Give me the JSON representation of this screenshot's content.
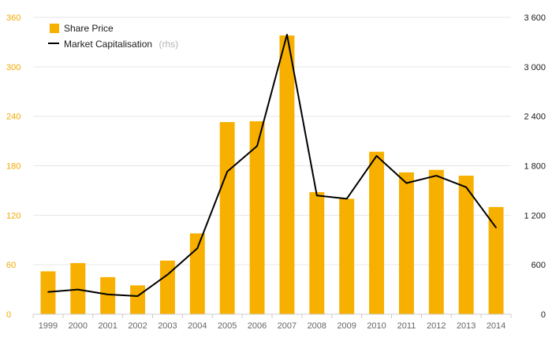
{
  "chart_data": {
    "type": "bar+line",
    "categories": [
      "1999",
      "2000",
      "2001",
      "2002",
      "2003",
      "2004",
      "2005",
      "2006",
      "2007",
      "2008",
      "2009",
      "2010",
      "2011",
      "2012",
      "2013",
      "2014"
    ],
    "series": [
      {
        "name": "Share Price",
        "type": "bar",
        "axis": "left",
        "color": "#f7b000",
        "values": [
          52,
          62,
          45,
          35,
          65,
          98,
          233,
          234,
          338,
          148,
          140,
          197,
          172,
          175,
          168,
          130
        ]
      },
      {
        "name": "Market Capitalisation",
        "type": "line",
        "axis": "right",
        "color": "#000000",
        "values": [
          270,
          300,
          240,
          220,
          480,
          800,
          1730,
          2040,
          3390,
          1440,
          1400,
          1920,
          1590,
          1680,
          1540,
          1050
        ]
      }
    ],
    "legend": {
      "position": "top-left",
      "items": [
        {
          "label": "Share Price",
          "note": ""
        },
        {
          "label": "Market Capitalisation",
          "note": "(rhs)"
        }
      ]
    },
    "y_left": {
      "ylim": [
        0,
        360
      ],
      "ticks": [
        "0",
        "60",
        "120",
        "180",
        "240",
        "300",
        "360"
      ]
    },
    "y_right": {
      "ylim": [
        0,
        3600
      ],
      "ticks": [
        "0",
        "600",
        "1 200",
        "1 800",
        "2 400",
        "3 000",
        "3 600"
      ]
    },
    "grid": true
  }
}
